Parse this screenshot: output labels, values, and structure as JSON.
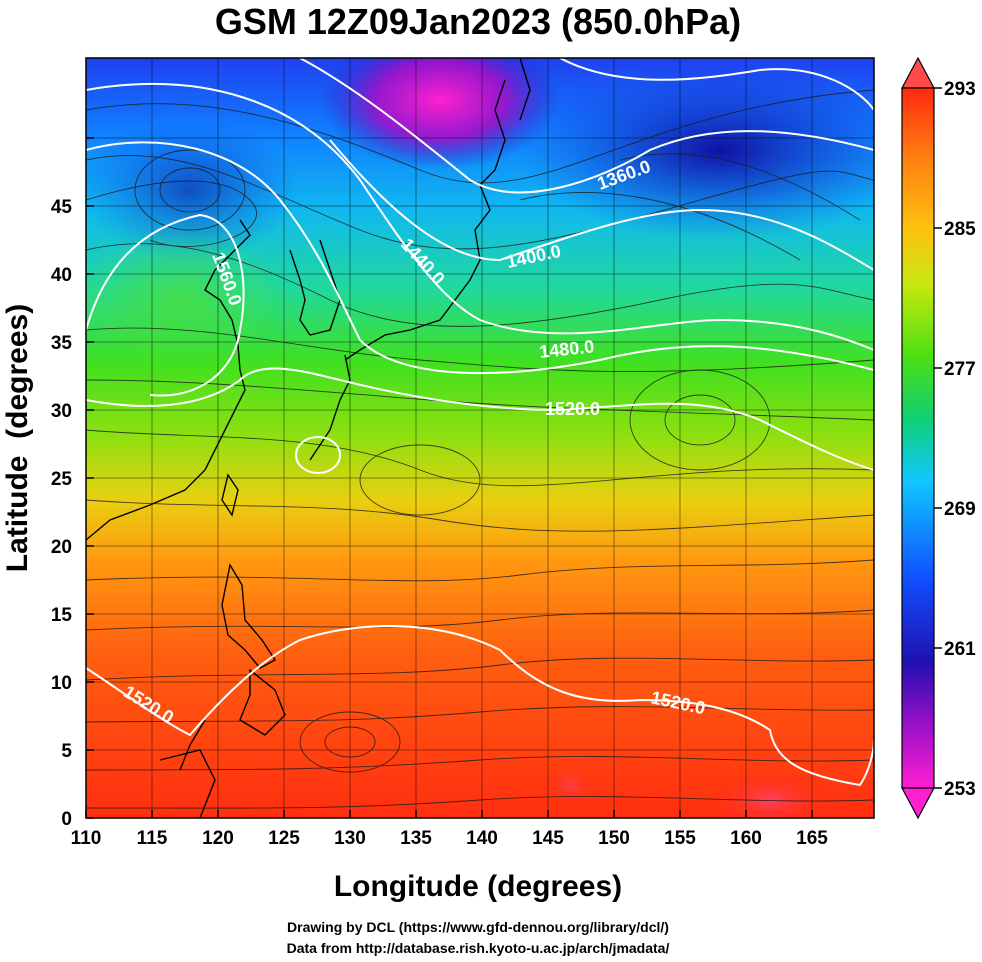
{
  "title": "GSM 12Z09Jan2023 (850.0hPa)",
  "x_axis": {
    "label": "Longitude (degrees)",
    "ticks": [
      "110",
      "115",
      "120",
      "125",
      "130",
      "135",
      "140",
      "145",
      "150",
      "155",
      "160",
      "165"
    ]
  },
  "y_axis": {
    "label": "Latitude  (degrees)",
    "ticks": [
      "0",
      "5",
      "10",
      "15",
      "20",
      "25",
      "30",
      "35",
      "40",
      "45"
    ]
  },
  "colorbar": {
    "ticks": [
      "293",
      "285",
      "277",
      "269",
      "261",
      "253"
    ],
    "colors": [
      "#ff1fd0",
      "#9a10c8",
      "#2010b0",
      "#1050ff",
      "#10c8ff",
      "#10d070",
      "#50e010",
      "#c8e810",
      "#ffc010",
      "#ff8010",
      "#ff2810"
    ]
  },
  "contour_labels": [
    "1360.0",
    "1400.0",
    "1440.0",
    "1480.0",
    "1520.0",
    "1520.0",
    "1520.0",
    "1560.0"
  ],
  "credits": {
    "line1": "Drawing by DCL (https://www.gfd-dennou.org/library/dcl/)",
    "line2": "Data from http://database.rish.kyoto-u.ac.jp/arch/jmadata/"
  },
  "chart_data": {
    "type": "heatmap",
    "variable_range": [
      253,
      293
    ],
    "xlim": [
      110,
      170
    ],
    "ylim": [
      0,
      50
    ],
    "contour_levels": [
      1360,
      1400,
      1440,
      1480,
      1520,
      1560
    ]
  }
}
